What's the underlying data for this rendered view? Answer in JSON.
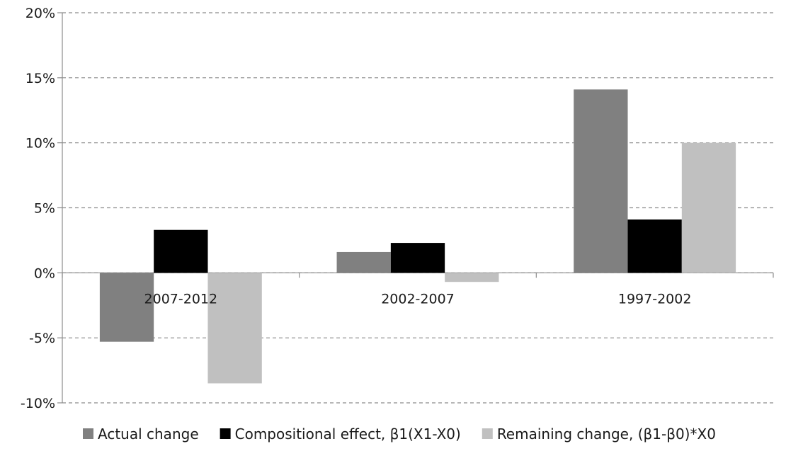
{
  "chart_data": {
    "type": "bar",
    "title": "",
    "xlabel": "",
    "ylabel": "",
    "categories": [
      "2007-2012",
      "2002-2007",
      "1997-2002"
    ],
    "ylim": [
      -10,
      20
    ],
    "yticks": [
      -10,
      -5,
      0,
      5,
      10,
      15,
      20
    ],
    "ytick_labels": [
      "-10%",
      "-5%",
      "0%",
      "5%",
      "10%",
      "15%",
      "20%"
    ],
    "grid": "horizontal dashed",
    "legend_position": "bottom",
    "series": [
      {
        "name": "Actual change",
        "color": "#808080",
        "values": [
          -5.3,
          1.6,
          14.1
        ]
      },
      {
        "name": "Compositional effect, β1(X1-X0)",
        "color": "#000000",
        "values": [
          3.3,
          2.3,
          4.1
        ]
      },
      {
        "name": "Remaining change, (β1-β0)*X0",
        "color": "#c0c0c0",
        "values": [
          -8.5,
          -0.7,
          10.0
        ]
      }
    ]
  }
}
